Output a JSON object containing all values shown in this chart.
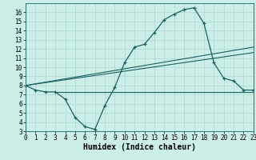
{
  "bg_color": "#cceee8",
  "grid_color": "#aad8d0",
  "line_color": "#1a6060",
  "xlabel": "Humidex (Indice chaleur)",
  "ylim": [
    3,
    17
  ],
  "xlim": [
    0,
    23
  ],
  "yticks": [
    3,
    4,
    5,
    6,
    7,
    8,
    9,
    10,
    11,
    12,
    13,
    14,
    15,
    16
  ],
  "xticks": [
    0,
    1,
    2,
    3,
    4,
    5,
    6,
    7,
    8,
    9,
    10,
    11,
    12,
    13,
    14,
    15,
    16,
    17,
    18,
    19,
    20,
    21,
    22,
    23
  ],
  "curve1_x": [
    0,
    1,
    2,
    3,
    4,
    5,
    6,
    7,
    8,
    9,
    10,
    11,
    12,
    13,
    14,
    15,
    16,
    17,
    18,
    19,
    20,
    21,
    22,
    23
  ],
  "curve1_y": [
    8.0,
    7.5,
    7.3,
    7.3,
    6.5,
    4.5,
    3.5,
    3.2,
    5.8,
    7.8,
    10.5,
    12.2,
    12.5,
    13.8,
    15.2,
    15.8,
    16.3,
    16.5,
    14.8,
    10.5,
    8.8,
    8.5,
    7.5,
    7.5
  ],
  "curve2_x": [
    0,
    23
  ],
  "curve2_y": [
    8.0,
    12.2
  ],
  "curve3_x": [
    0,
    23
  ],
  "curve3_y": [
    8.0,
    11.6
  ],
  "curve4_x": [
    3,
    23
  ],
  "curve4_y": [
    7.3,
    7.3
  ],
  "font_family": "monospace",
  "tick_fontsize": 5.5,
  "label_fontsize": 7
}
